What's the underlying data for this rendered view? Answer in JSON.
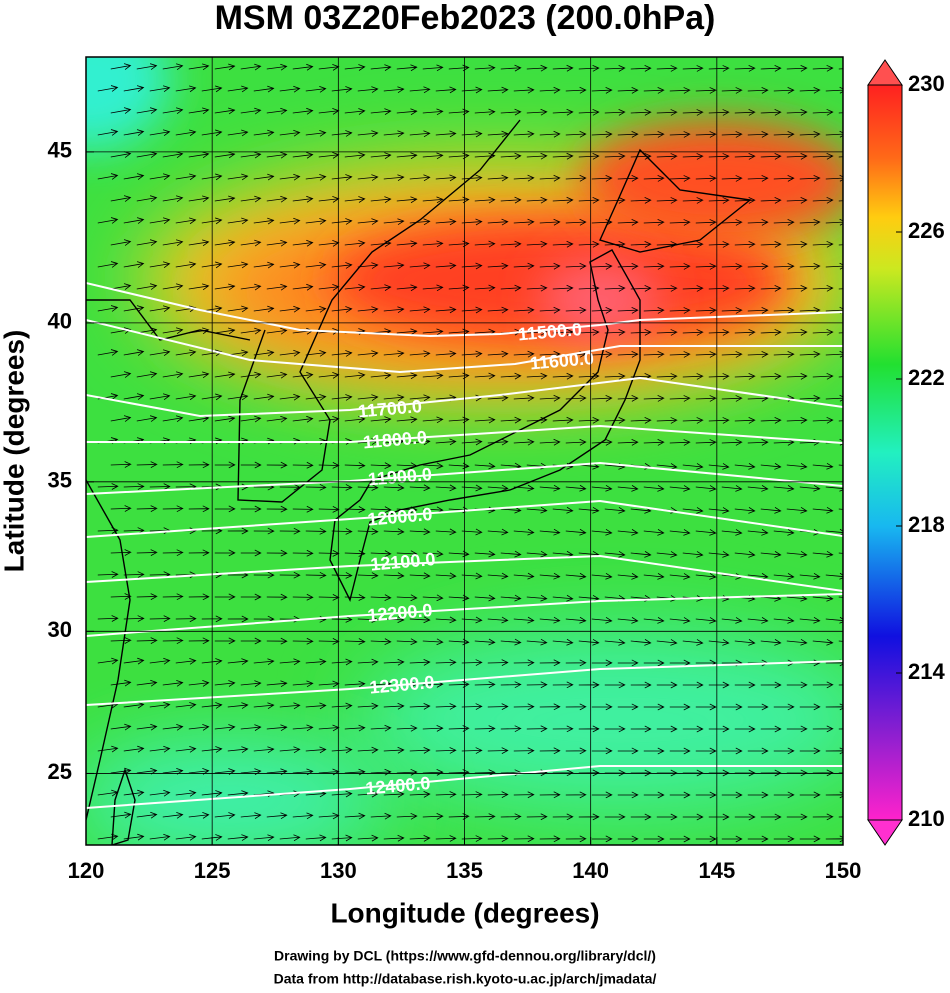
{
  "map": {
    "title": "MSM 03Z20Feb2023 (200.0hPa)",
    "x_label": "Longitude (degrees)",
    "y_label": "Latitude  (degrees)",
    "projection": "mercator",
    "xlim": [
      120,
      150
    ],
    "ylim": [
      22.4,
      47.6
    ],
    "xticks": [
      120,
      125,
      130,
      135,
      140,
      145,
      150
    ],
    "yticks": [
      25,
      30,
      35,
      40,
      45
    ],
    "grid": true,
    "colorbar": {
      "lim": [
        210,
        230
      ],
      "ticks": [
        210,
        214,
        218,
        222,
        226,
        230
      ]
    },
    "contours": [
      {
        "value": 11500,
        "label": "11500.0"
      },
      {
        "value": 11600,
        "label": "11600.0"
      },
      {
        "value": 11700,
        "label": "11700.0"
      },
      {
        "value": 11800,
        "label": "11800.0"
      },
      {
        "value": 11900,
        "label": "11900.0"
      },
      {
        "value": 12000,
        "label": "12000.0"
      },
      {
        "value": 12100,
        "label": "12100.0"
      },
      {
        "value": 12200,
        "label": "12200.0"
      },
      {
        "value": 12300,
        "label": "12300.0"
      },
      {
        "value": 12400,
        "label": "12400.0"
      }
    ],
    "footer": [
      "Drawing by DCL (https://www.gfd-dennou.org/library/dcl/)",
      "Data from http://database.rish.kyoto-u.ac.jp/arch/jmadata/"
    ]
  }
}
